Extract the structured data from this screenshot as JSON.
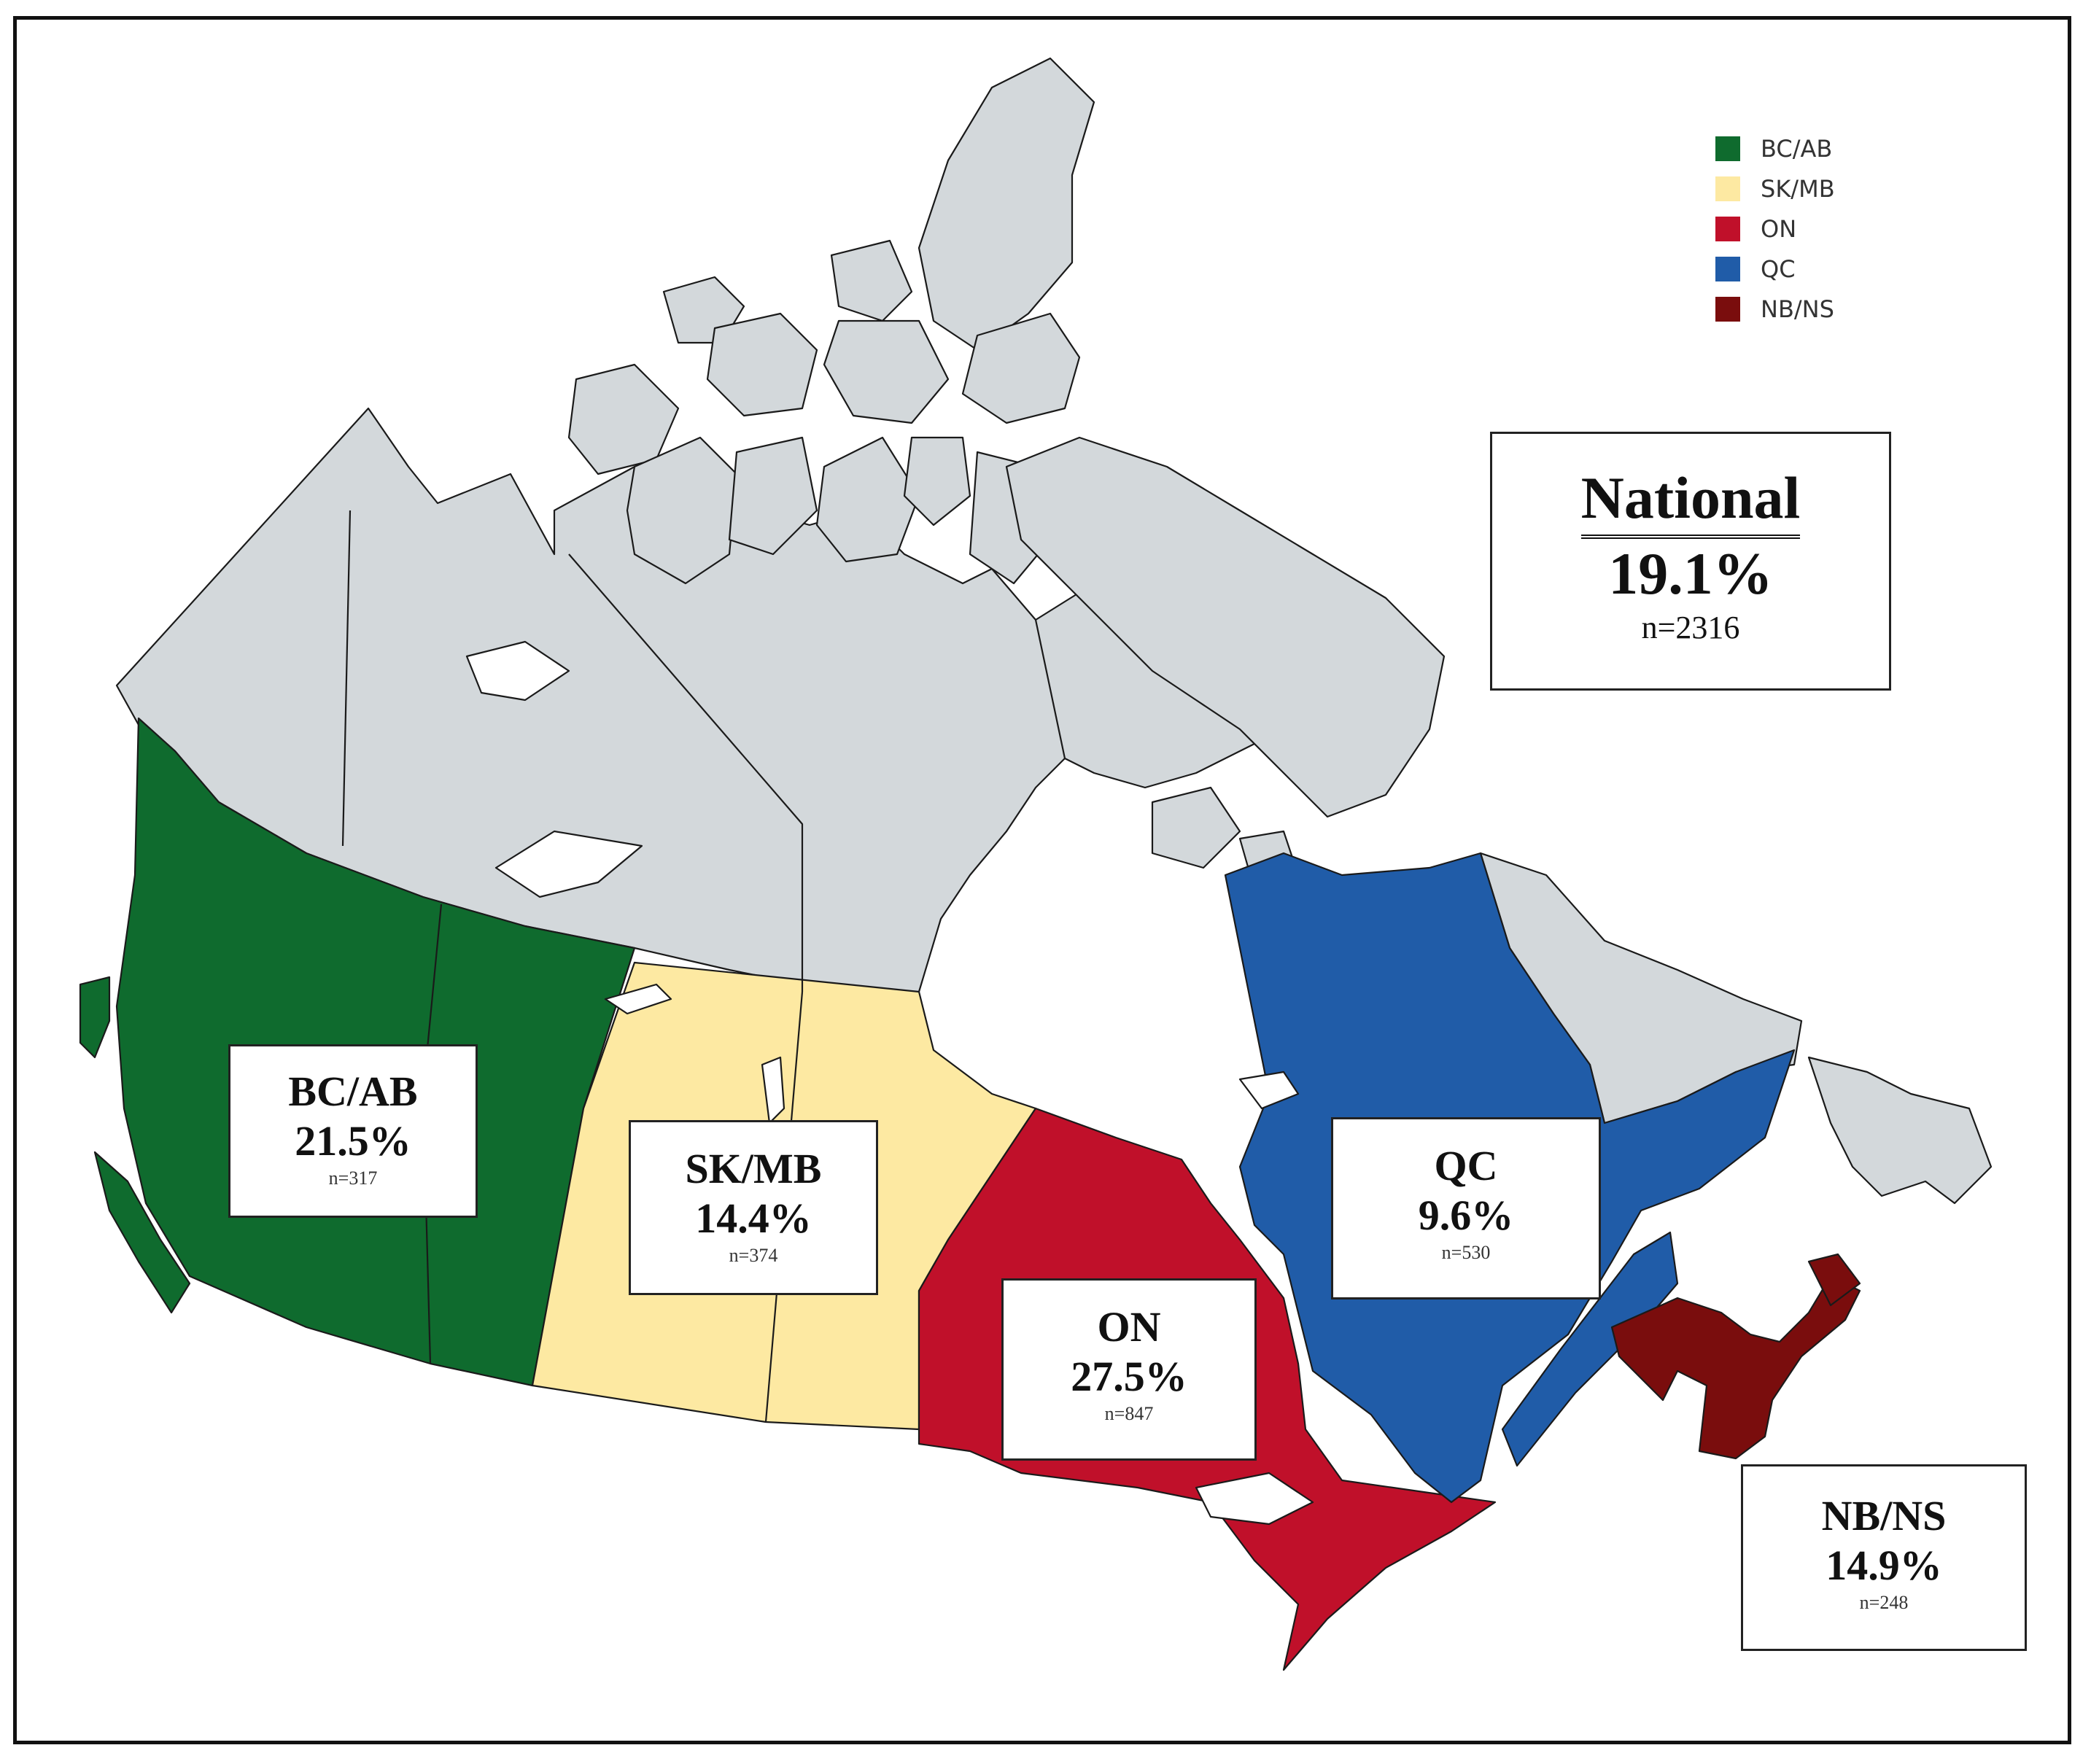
{
  "legend": {
    "items": [
      {
        "label": "BC/AB",
        "color": "#0f6b2e"
      },
      {
        "label": "SK/MB",
        "color": "#fde9a2"
      },
      {
        "label": "ON",
        "color": "#c0102a"
      },
      {
        "label": "QC",
        "color": "#205ca8"
      },
      {
        "label": "NB/NS",
        "color": "#7a0d0d"
      }
    ]
  },
  "national": {
    "title": "National",
    "value": "19.1%",
    "n": "n=2316"
  },
  "regions": {
    "bcab": {
      "name": "BC/AB",
      "value": "21.5%",
      "n": "n=317",
      "color": "#0f6b2e"
    },
    "skmb": {
      "name": "SK/MB",
      "value": "14.4%",
      "n": "n=374",
      "color": "#fde9a2"
    },
    "on": {
      "name": "ON",
      "value": "27.5%",
      "n": "n=847",
      "color": "#c0102a"
    },
    "qc": {
      "name": "QC",
      "value": "9.6%",
      "n": "n=530",
      "color": "#205ca8"
    },
    "nbns": {
      "name": "NB/NS",
      "value": "14.9%",
      "n": "n=248",
      "color": "#7a0d0d"
    }
  },
  "colors": {
    "no_data": "#d3d8db",
    "water": "#ffffff",
    "border": "#1a1a1a"
  }
}
